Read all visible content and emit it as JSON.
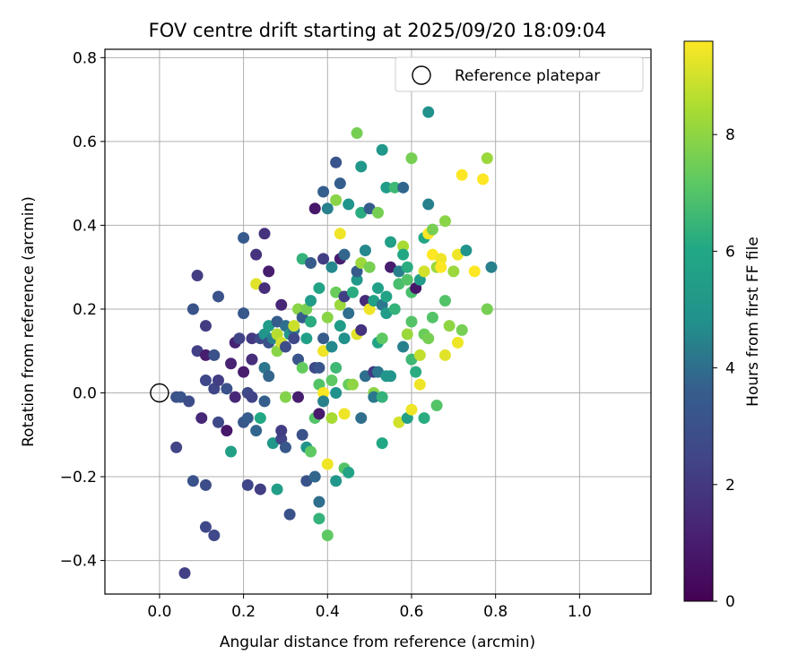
{
  "chart_data": {
    "type": "scatter",
    "title": "FOV centre drift starting at 2025/09/20 18:09:04",
    "xlabel": "Angular distance from reference (arcmin)",
    "ylabel": "Rotation from reference (arcmin)",
    "xlim": [
      -0.13,
      1.17
    ],
    "ylim": [
      -0.48,
      0.82
    ],
    "xticks": [
      0.0,
      0.2,
      0.4,
      0.6,
      0.8,
      1.0
    ],
    "xtick_labels": [
      "0.0",
      "0.2",
      "0.4",
      "0.6",
      "0.8",
      "1.0"
    ],
    "yticks": [
      -0.4,
      -0.2,
      0.0,
      0.2,
      0.4,
      0.6,
      0.8
    ],
    "ytick_labels": [
      "−0.4",
      "−0.2",
      "0.0",
      "0.2",
      "0.4",
      "0.6",
      "0.8"
    ],
    "grid": true,
    "legend": {
      "position": "top-right",
      "label": "Reference platepar"
    },
    "reference_point": {
      "x": 0.0,
      "y": 0.0
    },
    "colorbar": {
      "label": "Hours from first FF file",
      "range": [
        0,
        9.6
      ],
      "ticks": [
        0,
        2,
        4,
        6,
        8
      ],
      "tick_labels": [
        "0",
        "2",
        "4",
        "6",
        "8"
      ],
      "colormap": "viridis"
    },
    "points": [
      {
        "x": 0.06,
        "y": -0.43,
        "c": 2.3
      },
      {
        "x": 0.04,
        "y": -0.13,
        "c": 2.4
      },
      {
        "x": 0.08,
        "y": -0.21,
        "c": 3.1
      },
      {
        "x": 0.11,
        "y": -0.22,
        "c": 2.8
      },
      {
        "x": 0.11,
        "y": -0.32,
        "c": 2.6
      },
      {
        "x": 0.13,
        "y": -0.34,
        "c": 2.6
      },
      {
        "x": 0.04,
        "y": -0.01,
        "c": 3.0
      },
      {
        "x": 0.05,
        "y": -0.01,
        "c": 3.2
      },
      {
        "x": 0.07,
        "y": -0.02,
        "c": 2.8
      },
      {
        "x": 0.09,
        "y": 0.28,
        "c": 2.2
      },
      {
        "x": 0.08,
        "y": 0.2,
        "c": 3.1
      },
      {
        "x": 0.09,
        "y": 0.1,
        "c": 2.3
      },
      {
        "x": 0.1,
        "y": -0.06,
        "c": 1.4
      },
      {
        "x": 0.11,
        "y": 0.16,
        "c": 2.1
      },
      {
        "x": 0.11,
        "y": 0.09,
        "c": 1.0
      },
      {
        "x": 0.11,
        "y": 0.03,
        "c": 2.6
      },
      {
        "x": 0.13,
        "y": 0.09,
        "c": 3.0
      },
      {
        "x": 0.14,
        "y": -0.07,
        "c": 2.7
      },
      {
        "x": 0.14,
        "y": 0.23,
        "c": 3.1
      },
      {
        "x": 0.13,
        "y": 0.01,
        "c": 2.5
      },
      {
        "x": 0.14,
        "y": 0.03,
        "c": 2.2
      },
      {
        "x": 0.16,
        "y": -0.09,
        "c": 0.8
      },
      {
        "x": 0.16,
        "y": 0.01,
        "c": 3.0
      },
      {
        "x": 0.17,
        "y": 0.07,
        "c": 1.2
      },
      {
        "x": 0.18,
        "y": -0.01,
        "c": 1.4
      },
      {
        "x": 0.18,
        "y": 0.12,
        "c": 1.2
      },
      {
        "x": 0.17,
        "y": -0.14,
        "c": 5.6
      },
      {
        "x": 0.19,
        "y": 0.13,
        "c": 2.4
      },
      {
        "x": 0.2,
        "y": 0.37,
        "c": 3.4
      },
      {
        "x": 0.2,
        "y": 0.19,
        "c": 3.3
      },
      {
        "x": 0.2,
        "y": 0.05,
        "c": 1.0
      },
      {
        "x": 0.2,
        "y": -0.07,
        "c": 3.3
      },
      {
        "x": 0.21,
        "y": 0.0,
        "c": 2.7
      },
      {
        "x": 0.21,
        "y": -0.06,
        "c": 3.5
      },
      {
        "x": 0.21,
        "y": -0.22,
        "c": 2.5
      },
      {
        "x": 0.22,
        "y": 0.08,
        "c": 1.6
      },
      {
        "x": 0.22,
        "y": 0.13,
        "c": 2.0
      },
      {
        "x": 0.22,
        "y": -0.01,
        "c": 2.4
      },
      {
        "x": 0.23,
        "y": -0.09,
        "c": 3.8
      },
      {
        "x": 0.23,
        "y": 0.26,
        "c": 9.2
      },
      {
        "x": 0.23,
        "y": 0.33,
        "c": 1.8
      },
      {
        "x": 0.24,
        "y": -0.23,
        "c": 2.2
      },
      {
        "x": 0.24,
        "y": 0.13,
        "c": 2.7
      },
      {
        "x": 0.24,
        "y": -0.06,
        "c": 6.0
      },
      {
        "x": 0.25,
        "y": 0.38,
        "c": 1.8
      },
      {
        "x": 0.25,
        "y": 0.25,
        "c": 1.6
      },
      {
        "x": 0.25,
        "y": 0.14,
        "c": 5.0
      },
      {
        "x": 0.25,
        "y": 0.06,
        "c": 4.2
      },
      {
        "x": 0.25,
        "y": -0.02,
        "c": 3.6
      },
      {
        "x": 0.26,
        "y": 0.29,
        "c": 1.0
      },
      {
        "x": 0.26,
        "y": 0.16,
        "c": 5.4
      },
      {
        "x": 0.26,
        "y": 0.12,
        "c": 3.0
      },
      {
        "x": 0.26,
        "y": 0.04,
        "c": 3.8
      },
      {
        "x": 0.27,
        "y": -0.12,
        "c": 5.2
      },
      {
        "x": 0.27,
        "y": 0.13,
        "c": 4.4
      },
      {
        "x": 0.28,
        "y": -0.23,
        "c": 5.5
      },
      {
        "x": 0.28,
        "y": 0.17,
        "c": 3.5
      },
      {
        "x": 0.28,
        "y": 0.14,
        "c": 8.6
      },
      {
        "x": 0.28,
        "y": 0.1,
        "c": 7.9
      },
      {
        "x": 0.29,
        "y": 0.21,
        "c": 1.4
      },
      {
        "x": 0.29,
        "y": 0.12,
        "c": 9.0
      },
      {
        "x": 0.29,
        "y": -0.11,
        "c": 2.4
      },
      {
        "x": 0.29,
        "y": -0.09,
        "c": 2.2
      },
      {
        "x": 0.3,
        "y": -0.01,
        "c": 7.8
      },
      {
        "x": 0.3,
        "y": 0.11,
        "c": 2.8
      },
      {
        "x": 0.3,
        "y": 0.16,
        "c": 4.0
      },
      {
        "x": 0.3,
        "y": -0.13,
        "c": 3.3
      },
      {
        "x": 0.31,
        "y": 0.14,
        "c": 5.2
      },
      {
        "x": 0.31,
        "y": -0.29,
        "c": 3.0
      },
      {
        "x": 0.32,
        "y": 0.15,
        "c": 4.1
      },
      {
        "x": 0.32,
        "y": 0.13,
        "c": 2.6
      },
      {
        "x": 0.32,
        "y": 0.16,
        "c": 8.9
      },
      {
        "x": 0.33,
        "y": 0.2,
        "c": 7.9
      },
      {
        "x": 0.33,
        "y": 0.08,
        "c": 3.2
      },
      {
        "x": 0.33,
        "y": -0.01,
        "c": 1.0
      },
      {
        "x": 0.34,
        "y": 0.06,
        "c": 7.3
      },
      {
        "x": 0.34,
        "y": -0.1,
        "c": 3.0
      },
      {
        "x": 0.34,
        "y": 0.32,
        "c": 6.4
      },
      {
        "x": 0.34,
        "y": 0.18,
        "c": 3.5
      },
      {
        "x": 0.35,
        "y": -0.21,
        "c": 3.1
      },
      {
        "x": 0.35,
        "y": -0.13,
        "c": 5.0
      },
      {
        "x": 0.35,
        "y": 0.13,
        "c": 5.6
      },
      {
        "x": 0.35,
        "y": 0.2,
        "c": 7.6
      },
      {
        "x": 0.36,
        "y": -0.14,
        "c": 7.2
      },
      {
        "x": 0.36,
        "y": 0.22,
        "c": 5.4
      },
      {
        "x": 0.36,
        "y": 0.31,
        "c": 3.5
      },
      {
        "x": 0.36,
        "y": 0.17,
        "c": 6.2
      },
      {
        "x": 0.37,
        "y": -0.2,
        "c": 3.8
      },
      {
        "x": 0.37,
        "y": 0.44,
        "c": 0.8
      },
      {
        "x": 0.37,
        "y": -0.06,
        "c": 7.0
      },
      {
        "x": 0.37,
        "y": 0.06,
        "c": 2.6
      },
      {
        "x": 0.38,
        "y": -0.26,
        "c": 4.0
      },
      {
        "x": 0.38,
        "y": 0.25,
        "c": 5.8
      },
      {
        "x": 0.38,
        "y": 0.06,
        "c": 3.2
      },
      {
        "x": 0.38,
        "y": 0.02,
        "c": 7.0
      },
      {
        "x": 0.38,
        "y": -0.05,
        "c": 0.9
      },
      {
        "x": 0.38,
        "y": -0.3,
        "c": 6.4
      },
      {
        "x": 0.39,
        "y": 0.48,
        "c": 3.6
      },
      {
        "x": 0.39,
        "y": 0.32,
        "c": 2.2
      },
      {
        "x": 0.39,
        "y": 0.13,
        "c": 3.5
      },
      {
        "x": 0.39,
        "y": 0.1,
        "c": 9.4
      },
      {
        "x": 0.39,
        "y": 0.0,
        "c": 9.6
      },
      {
        "x": 0.39,
        "y": -0.02,
        "c": 4.4
      },
      {
        "x": 0.4,
        "y": -0.17,
        "c": 9.4
      },
      {
        "x": 0.4,
        "y": -0.34,
        "c": 7.2
      },
      {
        "x": 0.4,
        "y": 0.18,
        "c": 7.9
      },
      {
        "x": 0.4,
        "y": 0.44,
        "c": 4.4
      },
      {
        "x": 0.41,
        "y": 0.3,
        "c": 4.6
      },
      {
        "x": 0.41,
        "y": 0.11,
        "c": 4.6
      },
      {
        "x": 0.41,
        "y": 0.03,
        "c": 7.2
      },
      {
        "x": 0.41,
        "y": -0.06,
        "c": 8.4
      },
      {
        "x": 0.42,
        "y": 0.55,
        "c": 3.2
      },
      {
        "x": 0.42,
        "y": 0.46,
        "c": 7.9
      },
      {
        "x": 0.42,
        "y": 0.24,
        "c": 7.4
      },
      {
        "x": 0.42,
        "y": 0.06,
        "c": 6.6
      },
      {
        "x": 0.42,
        "y": 0.0,
        "c": 4.8
      },
      {
        "x": 0.42,
        "y": -0.21,
        "c": 5.2
      },
      {
        "x": 0.43,
        "y": 0.38,
        "c": 9.4
      },
      {
        "x": 0.43,
        "y": 0.5,
        "c": 3.6
      },
      {
        "x": 0.43,
        "y": 0.32,
        "c": 1.0
      },
      {
        "x": 0.43,
        "y": 0.16,
        "c": 5.4
      },
      {
        "x": 0.43,
        "y": 0.21,
        "c": 8.2
      },
      {
        "x": 0.44,
        "y": -0.18,
        "c": 7.0
      },
      {
        "x": 0.44,
        "y": -0.05,
        "c": 9.4
      },
      {
        "x": 0.44,
        "y": 0.33,
        "c": 3.8
      },
      {
        "x": 0.44,
        "y": 0.23,
        "c": 2.2
      },
      {
        "x": 0.44,
        "y": 0.13,
        "c": 4.8
      },
      {
        "x": 0.45,
        "y": 0.02,
        "c": 7.3
      },
      {
        "x": 0.45,
        "y": 0.45,
        "c": 5.0
      },
      {
        "x": 0.45,
        "y": -0.19,
        "c": 5.8
      },
      {
        "x": 0.45,
        "y": 0.19,
        "c": 4.0
      },
      {
        "x": 0.46,
        "y": 0.24,
        "c": 6.2
      },
      {
        "x": 0.46,
        "y": 0.02,
        "c": 8.0
      },
      {
        "x": 0.47,
        "y": 0.62,
        "c": 7.6
      },
      {
        "x": 0.47,
        "y": 0.27,
        "c": 5.2
      },
      {
        "x": 0.47,
        "y": 0.14,
        "c": 9.2
      },
      {
        "x": 0.47,
        "y": 0.29,
        "c": 3.4
      },
      {
        "x": 0.48,
        "y": 0.15,
        "c": 1.8
      },
      {
        "x": 0.48,
        "y": 0.54,
        "c": 5.2
      },
      {
        "x": 0.48,
        "y": 0.31,
        "c": 8.2
      },
      {
        "x": 0.48,
        "y": -0.06,
        "c": 4.0
      },
      {
        "x": 0.48,
        "y": 0.43,
        "c": 6.2
      },
      {
        "x": 0.49,
        "y": 0.22,
        "c": 1.5
      },
      {
        "x": 0.49,
        "y": 0.04,
        "c": 4.0
      },
      {
        "x": 0.49,
        "y": 0.34,
        "c": 4.6
      },
      {
        "x": 0.5,
        "y": 0.2,
        "c": 9.4
      },
      {
        "x": 0.5,
        "y": 0.3,
        "c": 7.6
      },
      {
        "x": 0.5,
        "y": 0.44,
        "c": 3.5
      },
      {
        "x": 0.51,
        "y": 0.0,
        "c": 7.9
      },
      {
        "x": 0.51,
        "y": -0.01,
        "c": 4.2
      },
      {
        "x": 0.51,
        "y": 0.05,
        "c": 2.0
      },
      {
        "x": 0.51,
        "y": 0.22,
        "c": 5.6
      },
      {
        "x": 0.52,
        "y": 0.43,
        "c": 7.6
      },
      {
        "x": 0.52,
        "y": 0.12,
        "c": 5.9
      },
      {
        "x": 0.52,
        "y": 0.25,
        "c": 5.6
      },
      {
        "x": 0.52,
        "y": 0.05,
        "c": 4.2
      },
      {
        "x": 0.53,
        "y": -0.01,
        "c": 6.4
      },
      {
        "x": 0.53,
        "y": 0.21,
        "c": 4.2
      },
      {
        "x": 0.53,
        "y": -0.12,
        "c": 6.0
      },
      {
        "x": 0.53,
        "y": 0.13,
        "c": 7.2
      },
      {
        "x": 0.53,
        "y": 0.58,
        "c": 5.2
      },
      {
        "x": 0.54,
        "y": 0.04,
        "c": 5.2
      },
      {
        "x": 0.54,
        "y": 0.23,
        "c": 5.8
      },
      {
        "x": 0.54,
        "y": 0.19,
        "c": 5.4
      },
      {
        "x": 0.54,
        "y": 0.49,
        "c": 5.4
      },
      {
        "x": 0.55,
        "y": 0.36,
        "c": 5.6
      },
      {
        "x": 0.55,
        "y": 0.3,
        "c": 1.0
      },
      {
        "x": 0.55,
        "y": 0.04,
        "c": 5.0
      },
      {
        "x": 0.56,
        "y": 0.49,
        "c": 6.6
      },
      {
        "x": 0.56,
        "y": 0.2,
        "c": 6.4
      },
      {
        "x": 0.57,
        "y": -0.07,
        "c": 9.0
      },
      {
        "x": 0.57,
        "y": 0.29,
        "c": 4.4
      },
      {
        "x": 0.57,
        "y": 0.26,
        "c": 6.8
      },
      {
        "x": 0.58,
        "y": 0.35,
        "c": 8.4
      },
      {
        "x": 0.58,
        "y": 0.33,
        "c": 6.0
      },
      {
        "x": 0.58,
        "y": 0.11,
        "c": 4.4
      },
      {
        "x": 0.58,
        "y": 0.49,
        "c": 3.8
      },
      {
        "x": 0.59,
        "y": 0.3,
        "c": 6.2
      },
      {
        "x": 0.59,
        "y": 0.14,
        "c": 8.2
      },
      {
        "x": 0.59,
        "y": -0.06,
        "c": 5.6
      },
      {
        "x": 0.59,
        "y": 0.27,
        "c": 7.0
      },
      {
        "x": 0.6,
        "y": 0.56,
        "c": 7.6
      },
      {
        "x": 0.6,
        "y": 0.08,
        "c": 6.6
      },
      {
        "x": 0.6,
        "y": 0.24,
        "c": 6.8
      },
      {
        "x": 0.6,
        "y": 0.17,
        "c": 7.0
      },
      {
        "x": 0.6,
        "y": -0.04,
        "c": 9.4
      },
      {
        "x": 0.61,
        "y": 0.25,
        "c": 0.8
      },
      {
        "x": 0.61,
        "y": 0.05,
        "c": 6.2
      },
      {
        "x": 0.62,
        "y": 0.09,
        "c": 8.8
      },
      {
        "x": 0.62,
        "y": 0.27,
        "c": 5.4
      },
      {
        "x": 0.62,
        "y": 0.02,
        "c": 9.4
      },
      {
        "x": 0.63,
        "y": 0.37,
        "c": 6.0
      },
      {
        "x": 0.63,
        "y": 0.29,
        "c": 9.0
      },
      {
        "x": 0.63,
        "y": 0.14,
        "c": 7.4
      },
      {
        "x": 0.63,
        "y": -0.06,
        "c": 6.2
      },
      {
        "x": 0.64,
        "y": 0.45,
        "c": 4.4
      },
      {
        "x": 0.64,
        "y": 0.38,
        "c": 9.6
      },
      {
        "x": 0.64,
        "y": 0.67,
        "c": 4.8
      },
      {
        "x": 0.64,
        "y": 0.13,
        "c": 7.6
      },
      {
        "x": 0.65,
        "y": 0.33,
        "c": 9.6
      },
      {
        "x": 0.65,
        "y": 0.39,
        "c": 7.6
      },
      {
        "x": 0.65,
        "y": 0.18,
        "c": 7.0
      },
      {
        "x": 0.66,
        "y": -0.03,
        "c": 7.0
      },
      {
        "x": 0.66,
        "y": 0.3,
        "c": 8.2
      },
      {
        "x": 0.67,
        "y": 0.32,
        "c": 9.4
      },
      {
        "x": 0.67,
        "y": 0.3,
        "c": 9.6
      },
      {
        "x": 0.68,
        "y": 0.22,
        "c": 7.0
      },
      {
        "x": 0.68,
        "y": 0.41,
        "c": 7.9
      },
      {
        "x": 0.68,
        "y": 0.09,
        "c": 9.2
      },
      {
        "x": 0.69,
        "y": 0.16,
        "c": 8.0
      },
      {
        "x": 0.7,
        "y": 0.29,
        "c": 8.2
      },
      {
        "x": 0.71,
        "y": 0.33,
        "c": 9.4
      },
      {
        "x": 0.71,
        "y": 0.12,
        "c": 9.4
      },
      {
        "x": 0.72,
        "y": 0.52,
        "c": 9.6
      },
      {
        "x": 0.72,
        "y": 0.15,
        "c": 7.6
      },
      {
        "x": 0.73,
        "y": 0.34,
        "c": 5.0
      },
      {
        "x": 0.75,
        "y": 0.29,
        "c": 9.6
      },
      {
        "x": 0.77,
        "y": 0.51,
        "c": 9.6
      },
      {
        "x": 0.78,
        "y": 0.56,
        "c": 8.2
      },
      {
        "x": 0.78,
        "y": 0.2,
        "c": 7.6
      },
      {
        "x": 0.79,
        "y": 0.3,
        "c": 4.4
      }
    ]
  }
}
